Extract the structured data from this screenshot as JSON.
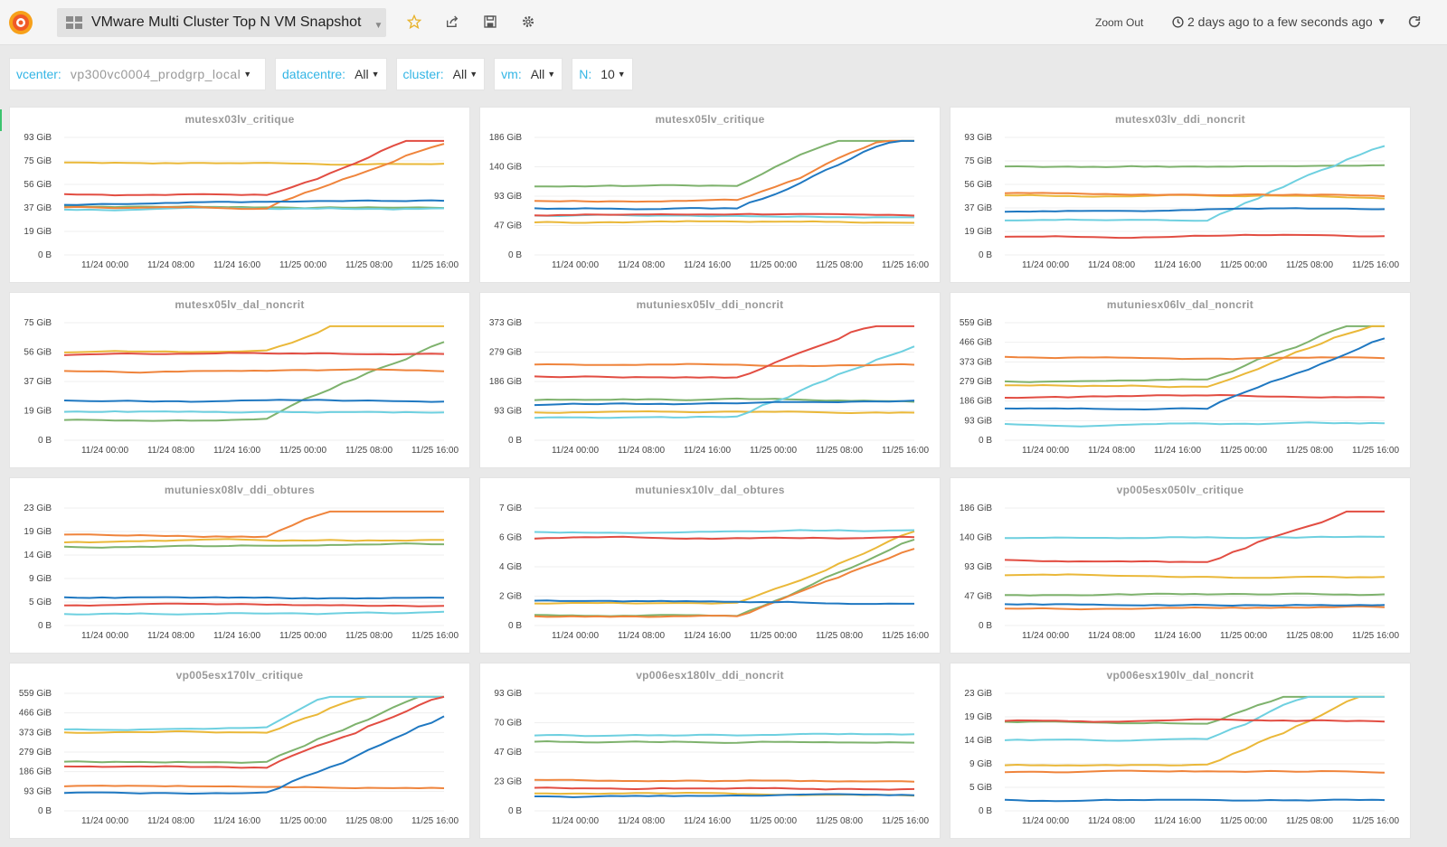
{
  "header": {
    "title": "VMware Multi Cluster Top N VM Snapshot",
    "zoom_out": "Zoom Out",
    "time_range": "2 days ago to a few seconds ago"
  },
  "icons": {
    "logo": "grafana-logo-icon",
    "dashboards": "dashboard-grid-icon",
    "star": "star-icon",
    "share": "share-icon",
    "save": "save-icon",
    "settings": "gear-icon",
    "clock": "clock-icon",
    "refresh": "refresh-icon"
  },
  "colors": {
    "accent_label": "#33b5e5",
    "series": [
      "#7eb26d",
      "#eab839",
      "#6ed0e0",
      "#ef843c",
      "#e24d42",
      "#1f78c1",
      "#ba43a9",
      "#705da0",
      "#508642",
      "#cca300"
    ]
  },
  "variables": [
    {
      "label": "vcenter:",
      "value": "vp300vc0004_prodgrp_local"
    },
    {
      "label": "datacentre:",
      "value": "All"
    },
    {
      "label": "cluster:",
      "value": "All"
    },
    {
      "label": "vm:",
      "value": "All"
    },
    {
      "label": "N:",
      "value": "10"
    }
  ],
  "panels": [
    {
      "title": "mutesx03lv_critique",
      "y_ticks": [
        "93 GiB",
        "75 GiB",
        "56 GiB",
        "37 GiB",
        "19 GiB",
        "0 B"
      ],
      "x_ticks": [
        "11/24 00:00",
        "11/24 08:00",
        "11/24 16:00",
        "11/25 00:00",
        "11/25 08:00",
        "11/25 16:00"
      ]
    },
    {
      "title": "mutesx05lv_critique",
      "y_ticks": [
        "186 GiB",
        "140 GiB",
        "93 GiB",
        "47 GiB",
        "0 B"
      ],
      "x_ticks": [
        "11/24 00:00",
        "11/24 08:00",
        "11/24 16:00",
        "11/25 00:00",
        "11/25 08:00",
        "11/25 16:00"
      ]
    },
    {
      "title": "mutesx03lv_ddi_noncrit",
      "y_ticks": [
        "93 GiB",
        "75 GiB",
        "56 GiB",
        "37 GiB",
        "19 GiB",
        "0 B"
      ],
      "x_ticks": [
        "11/24 00:00",
        "11/24 08:00",
        "11/24 16:00",
        "11/25 00:00",
        "11/25 08:00",
        "11/25 16:00"
      ]
    },
    {
      "title": "mutesx05lv_dal_noncrit",
      "y_ticks": [
        "75 GiB",
        "56 GiB",
        "37 GiB",
        "19 GiB",
        "0 B"
      ],
      "x_ticks": [
        "11/24 00:00",
        "11/24 08:00",
        "11/24 16:00",
        "11/25 00:00",
        "11/25 08:00",
        "11/25 16:00"
      ]
    },
    {
      "title": "mutuniesx05lv_ddi_noncrit",
      "y_ticks": [
        "373 GiB",
        "279 GiB",
        "186 GiB",
        "93 GiB",
        "0 B"
      ],
      "x_ticks": [
        "11/24 00:00",
        "11/24 08:00",
        "11/24 16:00",
        "11/25 00:00",
        "11/25 08:00",
        "11/25 16:00"
      ]
    },
    {
      "title": "mutuniesx06lv_dal_noncrit",
      "y_ticks": [
        "559 GiB",
        "466 GiB",
        "373 GiB",
        "279 GiB",
        "186 GiB",
        "93 GiB",
        "0 B"
      ],
      "x_ticks": [
        "11/24 00:00",
        "11/24 08:00",
        "11/24 16:00",
        "11/25 00:00",
        "11/25 08:00",
        "11/25 16:00"
      ]
    },
    {
      "title": "mutuniesx08lv_ddi_obtures",
      "y_ticks": [
        "23 GiB",
        "19 GiB",
        "14 GiB",
        "9 GiB",
        "5 GiB",
        "0 B"
      ],
      "x_ticks": [
        "11/24 00:00",
        "11/24 08:00",
        "11/24 16:00",
        "11/25 00:00",
        "11/25 08:00",
        "11/25 16:00"
      ]
    },
    {
      "title": "mutuniesx10lv_dal_obtures",
      "y_ticks": [
        "7 GiB",
        "6 GiB",
        "4 GiB",
        "2 GiB",
        "0 B"
      ],
      "x_ticks": [
        "11/24 00:00",
        "11/24 08:00",
        "11/24 16:00",
        "11/25 00:00",
        "11/25 08:00",
        "11/25 16:00"
      ]
    },
    {
      "title": "vp005esx050lv_critique",
      "y_ticks": [
        "186 GiB",
        "140 GiB",
        "93 GiB",
        "47 GiB",
        "0 B"
      ],
      "x_ticks": [
        "11/24 00:00",
        "11/24 08:00",
        "11/24 16:00",
        "11/25 00:00",
        "11/25 08:00",
        "11/25 16:00"
      ]
    },
    {
      "title": "vp005esx170lv_critique",
      "y_ticks": [
        "559 GiB",
        "466 GiB",
        "373 GiB",
        "279 GiB",
        "186 GiB",
        "93 GiB",
        "0 B"
      ],
      "x_ticks": [
        "11/24 00:00",
        "11/24 08:00",
        "11/24 16:00",
        "11/25 00:00",
        "11/25 08:00",
        "11/25 16:00"
      ]
    },
    {
      "title": "vp006esx180lv_ddi_noncrit",
      "y_ticks": [
        "93 GiB",
        "70 GiB",
        "47 GiB",
        "23 GiB",
        "0 B"
      ],
      "x_ticks": [
        "11/24 00:00",
        "11/24 08:00",
        "11/24 16:00",
        "11/25 00:00",
        "11/25 08:00",
        "11/25 16:00"
      ]
    },
    {
      "title": "vp006esx190lv_dal_noncrit",
      "y_ticks": [
        "23 GiB",
        "19 GiB",
        "14 GiB",
        "9 GiB",
        "5 GiB",
        "0 B"
      ],
      "x_ticks": [
        "11/24 00:00",
        "11/24 08:00",
        "11/24 16:00",
        "11/25 00:00",
        "11/25 08:00",
        "11/25 16:00"
      ]
    }
  ]
}
